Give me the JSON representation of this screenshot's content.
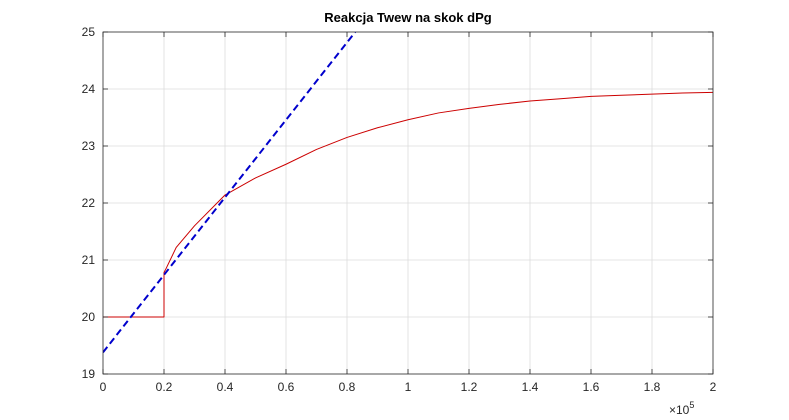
{
  "chart_data": {
    "type": "line",
    "title": "Reakcja Twew na skok dPg",
    "xlabel": "",
    "ylabel": "",
    "xlim": [
      0,
      200000
    ],
    "ylim": [
      19,
      25
    ],
    "x_ticks": [
      0,
      20000,
      40000,
      60000,
      80000,
      100000,
      120000,
      140000,
      160000,
      180000,
      200000
    ],
    "x_tick_labels": [
      "0",
      "0.2",
      "0.4",
      "0.6",
      "0.8",
      "1",
      "1.2",
      "1.4",
      "1.6",
      "1.8",
      "2"
    ],
    "x_exponent_base": "×10",
    "x_exponent_power": "5",
    "y_ticks": [
      19,
      20,
      21,
      22,
      23,
      24,
      25
    ],
    "y_tick_labels": [
      "19",
      "20",
      "21",
      "22",
      "23",
      "24",
      "25"
    ],
    "grid": true,
    "series": [
      {
        "color": "#cc0000",
        "style": "solid",
        "x": [
          0,
          20000,
          20000,
          20500,
          24000,
          30000,
          40000,
          50000,
          60000,
          70000,
          80000,
          90000,
          100000,
          110000,
          120000,
          130000,
          140000,
          150000,
          160000,
          170000,
          180000,
          190000,
          200000
        ],
        "y": [
          20,
          20,
          20.78,
          20.83,
          21.22,
          21.6,
          22.14,
          22.44,
          22.68,
          22.94,
          23.15,
          23.32,
          23.46,
          23.58,
          23.66,
          23.73,
          23.79,
          23.83,
          23.87,
          23.89,
          23.91,
          23.93,
          23.94
        ]
      },
      {
        "color": "#0000cc",
        "style": "dashed",
        "x": [
          0,
          82700
        ],
        "y": [
          19.38,
          25
        ]
      }
    ]
  }
}
